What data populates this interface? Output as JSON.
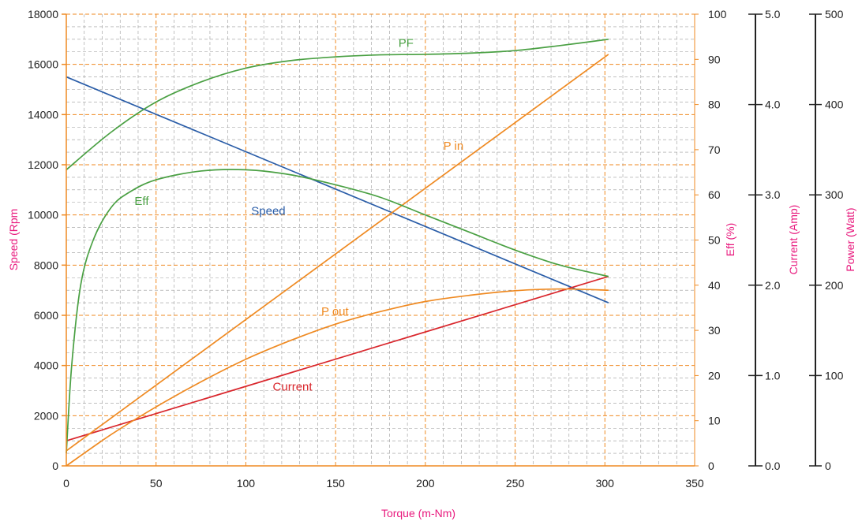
{
  "chart_data": {
    "type": "line",
    "xlabel": "Torque (m-Nm)",
    "x_ticks": [
      0,
      50,
      100,
      150,
      200,
      250,
      300,
      350
    ],
    "xlim": [
      0,
      350
    ],
    "axes": {
      "speed": {
        "label": "Speed (Rpm",
        "ticks": [
          0,
          2000,
          4000,
          6000,
          8000,
          10000,
          12000,
          14000,
          16000,
          18000
        ],
        "range": [
          0,
          18000
        ]
      },
      "eff": {
        "label": "Eff (%)",
        "ticks": [
          0,
          10,
          20,
          30,
          40,
          50,
          60,
          70,
          80,
          90,
          100
        ],
        "range": [
          0,
          100
        ]
      },
      "current": {
        "label": "Current (Amp)",
        "ticks": [
          "0.0",
          "1.0",
          "2.0",
          "3.0",
          "4.0",
          "5.0"
        ],
        "range": [
          0,
          5
        ]
      },
      "power": {
        "label": "Power (Watt)",
        "ticks": [
          0,
          100,
          200,
          300,
          400,
          500
        ],
        "range": [
          0,
          500
        ]
      }
    },
    "grid": true,
    "series": [
      {
        "name": "Speed",
        "axis": "speed",
        "color": "#2a5da8",
        "x": [
          0,
          302
        ],
        "y": [
          15500,
          6500
        ]
      },
      {
        "name": "Current",
        "axis": "speed",
        "color": "#d9262c",
        "x": [
          0,
          302
        ],
        "y": [
          1000,
          7550
        ]
      },
      {
        "name": "P in",
        "axis": "speed",
        "color": "#ef8a22",
        "x": [
          0,
          302
        ],
        "y": [
          600,
          16400
        ]
      },
      {
        "name": "P out",
        "axis": "speed",
        "color": "#ef8a22",
        "x": [
          0,
          25,
          50,
          75,
          100,
          125,
          150,
          175,
          200,
          225,
          250,
          275,
          302
        ],
        "y": [
          0,
          1250,
          2350,
          3350,
          4250,
          5000,
          5650,
          6150,
          6550,
          6800,
          6980,
          7050,
          7000
        ]
      },
      {
        "name": "Eff",
        "axis": "speed",
        "color": "#4aa043",
        "x": [
          0,
          3,
          8,
          15,
          25,
          35,
          50,
          75,
          100,
          125,
          150,
          175,
          200,
          225,
          250,
          275,
          302
        ],
        "y": [
          500,
          4000,
          7200,
          9000,
          10300,
          10900,
          11400,
          11750,
          11800,
          11600,
          11200,
          10700,
          10000,
          9300,
          8600,
          8000,
          7550
        ]
      },
      {
        "name": "PF",
        "axis": "speed",
        "color": "#4aa043",
        "x": [
          0,
          25,
          50,
          75,
          100,
          125,
          150,
          175,
          200,
          225,
          250,
          275,
          302
        ],
        "y": [
          11800,
          13300,
          14500,
          15300,
          15850,
          16150,
          16300,
          16380,
          16400,
          16450,
          16550,
          16750,
          17000
        ]
      }
    ]
  }
}
